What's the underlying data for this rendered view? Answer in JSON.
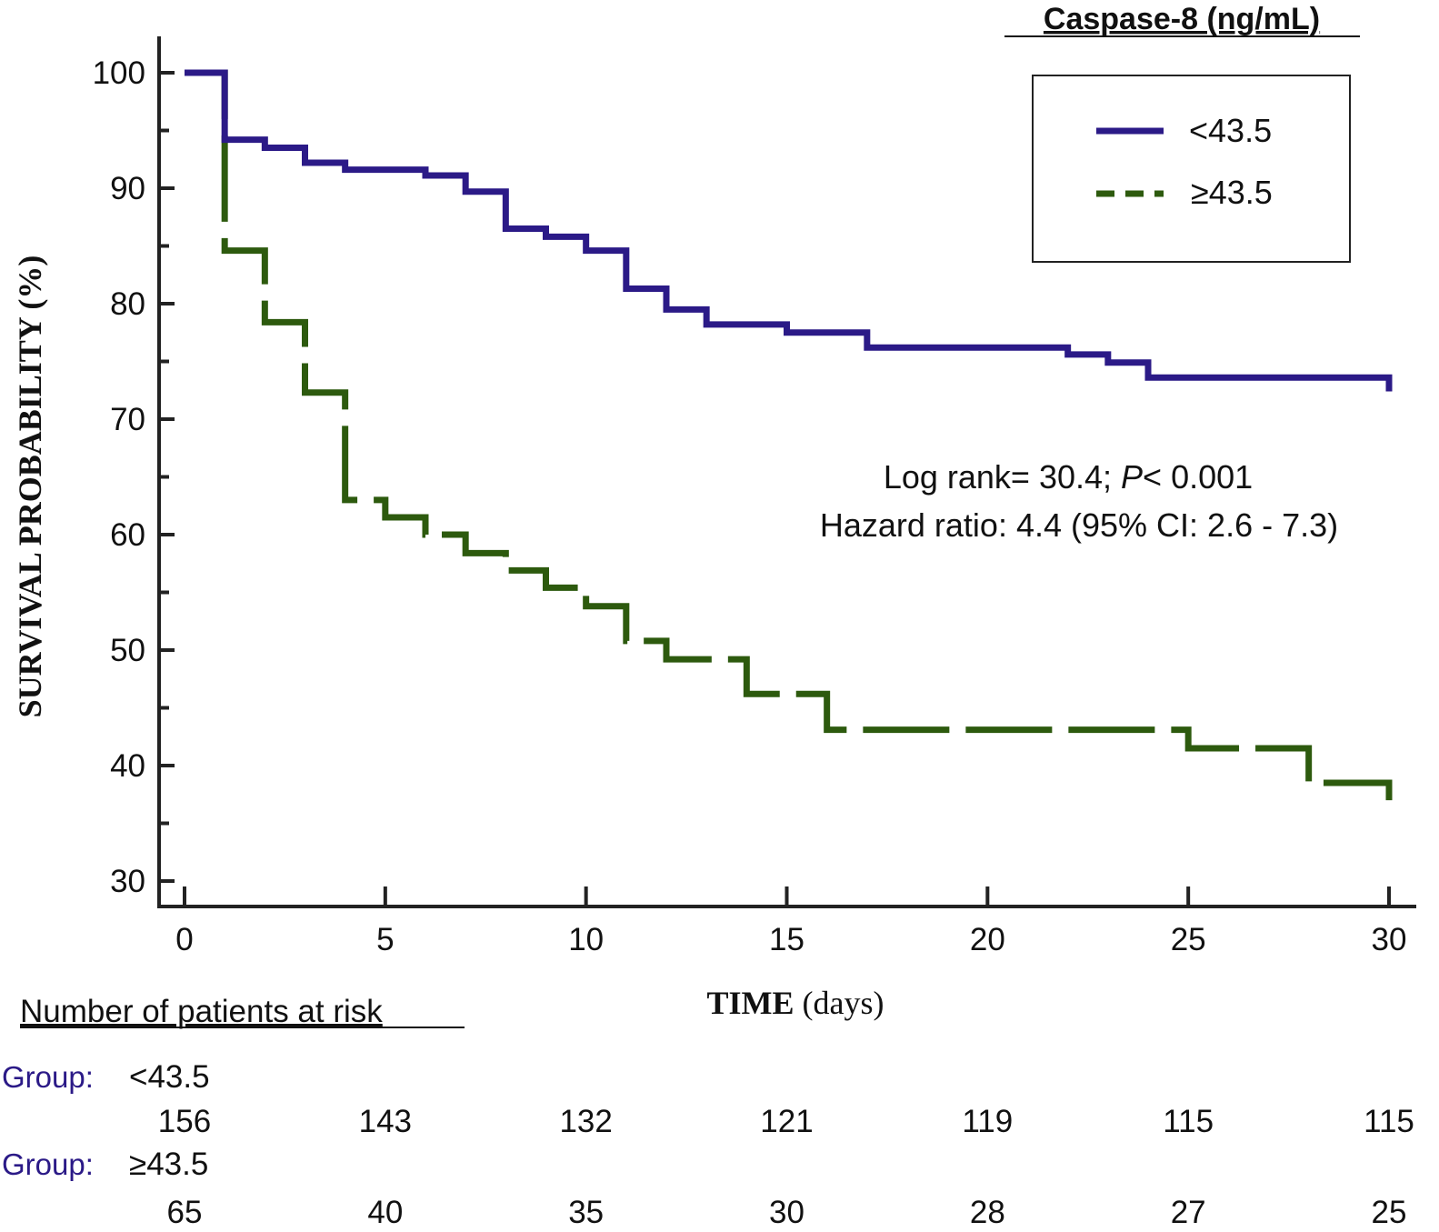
{
  "chart_data": {
    "type": "line",
    "subtype": "kaplan-meier step",
    "legend_title": "Caspase-8 (ng/mL)",
    "legend_placement": "top-right",
    "ylabel": "SURVIVAL PROBABILITY (%)",
    "xlabel_main": "TIME",
    "xlabel_unit": "(days)",
    "ylim": [
      30,
      100
    ],
    "xlim": [
      0,
      30
    ],
    "y_ticks": [
      "100",
      "90",
      "80",
      "70",
      "60",
      "50",
      "40",
      "30"
    ],
    "x_ticks": [
      "0",
      "5",
      "10",
      "15",
      "20",
      "25",
      "30"
    ],
    "annotation_line1_a": "Log rank= 30.4; ",
    "annotation_line1_p": "P",
    "annotation_line1_b": "< 0.001",
    "annotation_line2": "Hazard ratio: 4.4 (95% CI: 2.6 - 7.3)",
    "colors": {
      "low": "#2b1a87",
      "high": "#2d5a0e"
    },
    "series": [
      {
        "name": "<43.5",
        "style": "solid",
        "x": [
          0,
          1,
          2,
          3,
          4,
          6,
          7,
          8,
          9,
          10,
          11,
          12,
          13,
          15,
          17,
          22,
          23,
          24,
          30
        ],
        "y": [
          100,
          94.2,
          93.5,
          92.2,
          91.6,
          91.1,
          89.7,
          86.5,
          85.8,
          84.6,
          81.3,
          79.5,
          78.2,
          77.5,
          76.2,
          75.6,
          74.9,
          73.6,
          72.4
        ]
      },
      {
        "name": "≥43.5",
        "style": "dashed",
        "x": [
          0,
          1,
          2,
          3,
          4,
          5,
          6,
          7,
          8,
          9,
          10,
          11,
          12,
          14,
          16,
          25,
          28,
          30
        ],
        "y": [
          100,
          84.6,
          78.4,
          72.3,
          63.0,
          61.5,
          60.0,
          58.4,
          56.9,
          55.4,
          53.8,
          50.8,
          49.2,
          46.2,
          43.1,
          41.5,
          38.5,
          37.0
        ]
      }
    ]
  },
  "risk_table": {
    "title": "Number of patients at risk",
    "group_label": "Group:",
    "groups": [
      {
        "name": "<43.5",
        "counts": [
          "156",
          "143",
          "132",
          "121",
          "119",
          "115",
          "115"
        ]
      },
      {
        "name": "≥43.5",
        "counts": [
          "65",
          "40",
          "35",
          "30",
          "28",
          "27",
          "25"
        ]
      }
    ]
  }
}
